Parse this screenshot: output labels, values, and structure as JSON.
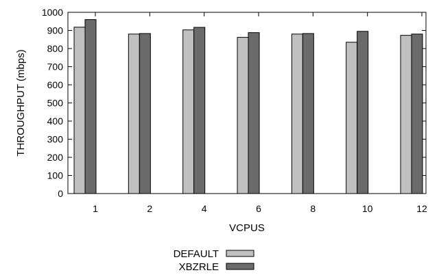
{
  "chart_data": {
    "type": "bar",
    "title": "",
    "xlabel": "VCPUS",
    "ylabel": "THROUGHPUT (mbps)",
    "categories": [
      "1",
      "2",
      "4",
      "6",
      "8",
      "10",
      "12"
    ],
    "ylim": [
      0,
      1000
    ],
    "yticks": [
      "0",
      "100",
      "200",
      "300",
      "400",
      "500",
      "600",
      "700",
      "800",
      "900",
      "1000"
    ],
    "grid": false,
    "legend_position": "bottom-center",
    "series": [
      {
        "name": "DEFAULT",
        "color": "#c0c0c0",
        "values": [
          918,
          880,
          903,
          862,
          880,
          835,
          873
        ]
      },
      {
        "name": "XBZRLE",
        "color": "#6b6b6b",
        "values": [
          960,
          883,
          917,
          888,
          883,
          895,
          880
        ]
      }
    ]
  }
}
